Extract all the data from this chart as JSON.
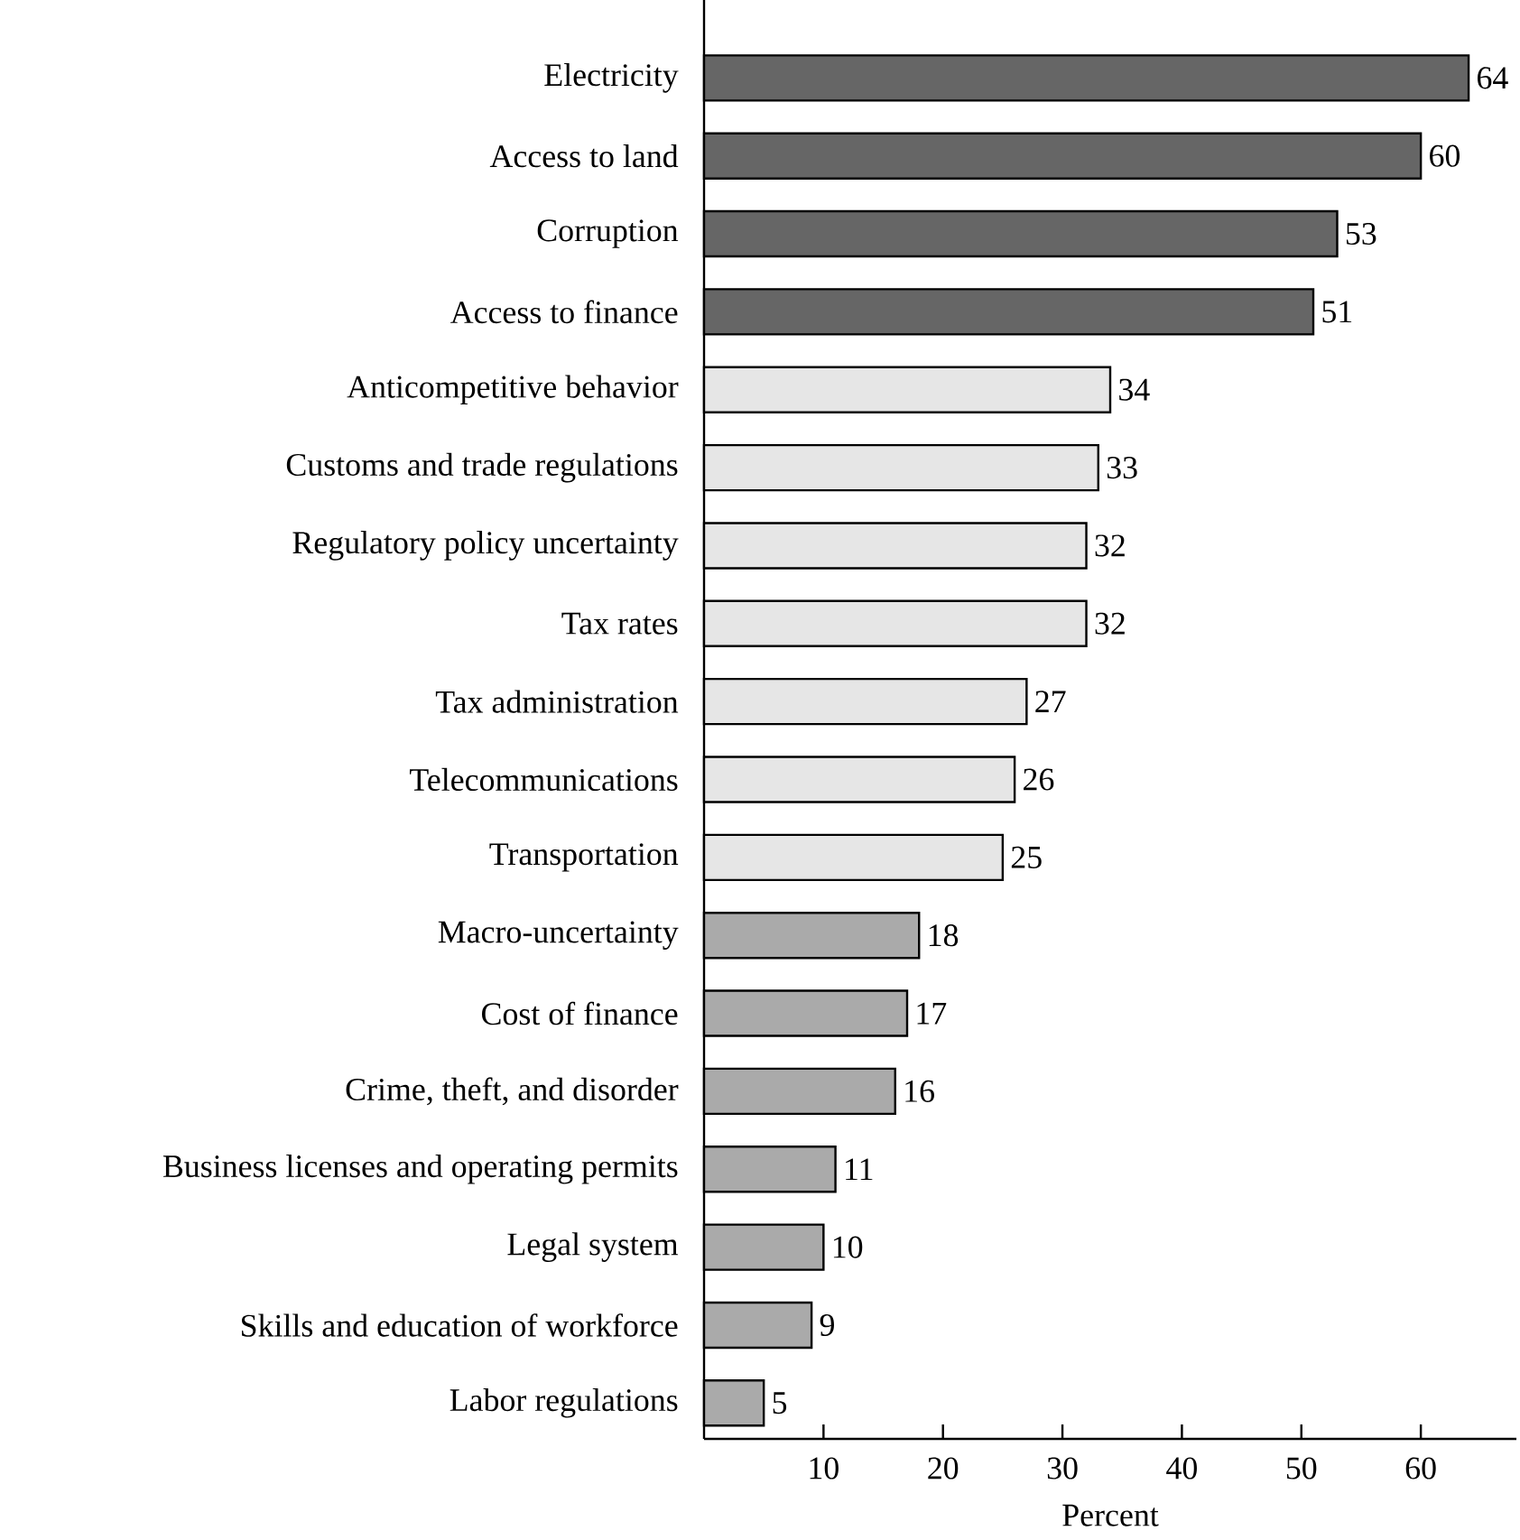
{
  "chart_data": {
    "type": "bar",
    "orientation": "horizontal",
    "xlabel": "Percent",
    "categories": [
      "Electricity",
      "Access to land",
      "Corruption",
      "Access to finance",
      "Anticompetitive behavior",
      "Customs and trade regulations",
      "Regulatory policy uncertainty",
      "Tax rates",
      "Tax administration",
      "Telecommunications",
      "Transportation",
      "Macro-uncertainty",
      "Cost of finance",
      "Crime, theft, and disorder",
      "Business licenses and operating permits",
      "Legal system",
      "Skills and education of workforce",
      "Labor regulations"
    ],
    "values": [
      64,
      60,
      53,
      51,
      34,
      33,
      32,
      32,
      27,
      26,
      25,
      18,
      17,
      16,
      11,
      10,
      9,
      5
    ],
    "colors": [
      "#666666",
      "#666666",
      "#666666",
      "#666666",
      "#e6e6e6",
      "#e6e6e6",
      "#e6e6e6",
      "#e6e6e6",
      "#e6e6e6",
      "#e6e6e6",
      "#e6e6e6",
      "#aaaaaa",
      "#aaaaaa",
      "#aaaaaa",
      "#aaaaaa",
      "#aaaaaa",
      "#aaaaaa",
      "#aaaaaa"
    ],
    "xlim": [
      0,
      68
    ],
    "xticks": [
      10,
      20,
      30,
      40,
      50,
      60
    ],
    "data_labels": true
  }
}
